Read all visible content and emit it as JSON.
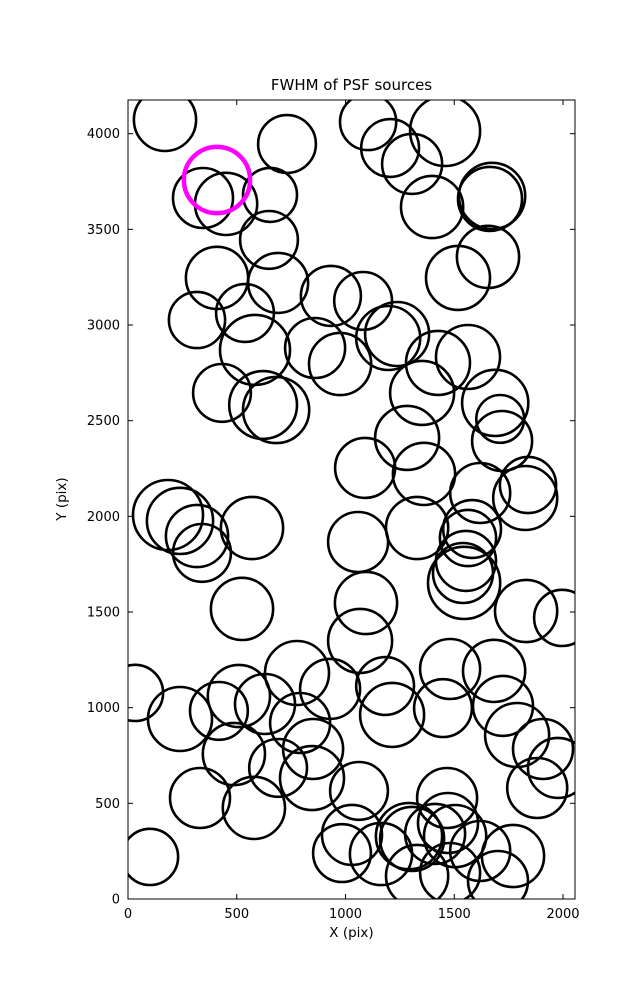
{
  "figure": {
    "title": "FWHM of PSF sources",
    "xlabel": "X (pix)",
    "ylabel": "Y (pix)",
    "background_color": "#ffffff",
    "frame_color": "#000000"
  },
  "chart_data": {
    "type": "scatter",
    "title": "FWHM of PSF sources",
    "xlabel": "X (pix)",
    "ylabel": "Y (pix)",
    "xlim": [
      0,
      2055
    ],
    "ylim": [
      0,
      4176
    ],
    "xticks": [
      0,
      500,
      1000,
      1500,
      2000
    ],
    "yticks": [
      0,
      500,
      1000,
      1500,
      2000,
      2500,
      3000,
      3500,
      4000
    ],
    "grid": false,
    "legend": "none",
    "marker_style": "open circle, radius proportional to FWHM",
    "circle_color": "#000000",
    "circle_stroke_px": 2.6,
    "highlight_color": "#ff00ff",
    "highlight_stroke_px": 4.5,
    "highlight_point": {
      "x": 409,
      "y": 3758,
      "r": 152
    },
    "points": [
      [
        170,
        4072,
        143
      ],
      [
        345,
        3664,
        138
      ],
      [
        451,
        3633,
        143
      ],
      [
        731,
        3946,
        133
      ],
      [
        653,
        3680,
        124
      ],
      [
        648,
        3445,
        133
      ],
      [
        409,
        3246,
        143
      ],
      [
        690,
        3220,
        138
      ],
      [
        1104,
        4061,
        129
      ],
      [
        1205,
        3925,
        133
      ],
      [
        1306,
        3842,
        138
      ],
      [
        1458,
        4014,
        161
      ],
      [
        1398,
        3617,
        143
      ],
      [
        1664,
        3659,
        147
      ],
      [
        1674,
        3675,
        152
      ],
      [
        1655,
        3356,
        143
      ],
      [
        1517,
        3246,
        147
      ],
      [
        317,
        3026,
        129
      ],
      [
        538,
        3063,
        133
      ],
      [
        584,
        2870,
        161
      ],
      [
        933,
        3152,
        138
      ],
      [
        1081,
        3126,
        133
      ],
      [
        860,
        2880,
        138
      ],
      [
        975,
        2796,
        143
      ],
      [
        432,
        2645,
        133
      ],
      [
        621,
        2582,
        156
      ],
      [
        681,
        2556,
        152
      ],
      [
        1196,
        2932,
        147
      ],
      [
        1237,
        2953,
        147
      ],
      [
        1425,
        2802,
        147
      ],
      [
        1563,
        2833,
        147
      ],
      [
        1352,
        2645,
        147
      ],
      [
        1688,
        2593,
        152
      ],
      [
        1711,
        2509,
        110
      ],
      [
        1720,
        2394,
        138
      ],
      [
        1283,
        2410,
        147
      ],
      [
        1090,
        2253,
        138
      ],
      [
        1361,
        2222,
        143
      ],
      [
        1619,
        2122,
        138
      ],
      [
        1839,
        2164,
        129
      ],
      [
        1826,
        2096,
        147
      ],
      [
        184,
        2007,
        161
      ],
      [
        239,
        1976,
        152
      ],
      [
        317,
        1897,
        143
      ],
      [
        340,
        1809,
        133
      ],
      [
        570,
        1939,
        143
      ],
      [
        524,
        1516,
        143
      ],
      [
        32,
        1077,
        129
      ],
      [
        777,
        1181,
        147
      ],
      [
        1058,
        1866,
        138
      ],
      [
        1329,
        1939,
        143
      ],
      [
        1582,
        1934,
        133
      ],
      [
        1563,
        1887,
        129
      ],
      [
        1554,
        1767,
        138
      ],
      [
        1540,
        1704,
        138
      ],
      [
        1545,
        1652,
        166
      ],
      [
        1094,
        1547,
        143
      ],
      [
        1067,
        1349,
        147
      ],
      [
        1830,
        1505,
        143
      ],
      [
        1996,
        1469,
        129
      ],
      [
        1481,
        1202,
        138
      ],
      [
        1683,
        1192,
        143
      ],
      [
        239,
        941,
        147
      ],
      [
        418,
        983,
        133
      ],
      [
        510,
        1061,
        143
      ],
      [
        630,
        1019,
        138
      ],
      [
        791,
        920,
        138
      ],
      [
        929,
        1098,
        138
      ],
      [
        487,
        758,
        143
      ],
      [
        690,
        685,
        133
      ],
      [
        846,
        632,
        147
      ],
      [
        851,
        784,
        138
      ],
      [
        331,
        528,
        138
      ],
      [
        579,
        476,
        143
      ],
      [
        101,
        220,
        129
      ],
      [
        1214,
        962,
        147
      ],
      [
        1182,
        1113,
        133
      ],
      [
        1448,
        998,
        133
      ],
      [
        1724,
        1009,
        138
      ],
      [
        1789,
        857,
        147
      ],
      [
        1908,
        784,
        138
      ],
      [
        1977,
        685,
        138
      ],
      [
        1881,
        580,
        138
      ],
      [
        1062,
        565,
        133
      ],
      [
        1030,
        335,
        138
      ],
      [
        984,
        240,
        133
      ],
      [
        1467,
        528,
        138
      ],
      [
        1292,
        329,
        152
      ],
      [
        1306,
        314,
        147
      ],
      [
        1412,
        340,
        138
      ],
      [
        1504,
        329,
        143
      ],
      [
        1471,
        397,
        138
      ],
      [
        1163,
        235,
        143
      ],
      [
        1329,
        120,
        143
      ],
      [
        1481,
        136,
        138
      ],
      [
        1619,
        251,
        138
      ],
      [
        1701,
        94,
        138
      ],
      [
        1770,
        225,
        143
      ]
    ]
  }
}
